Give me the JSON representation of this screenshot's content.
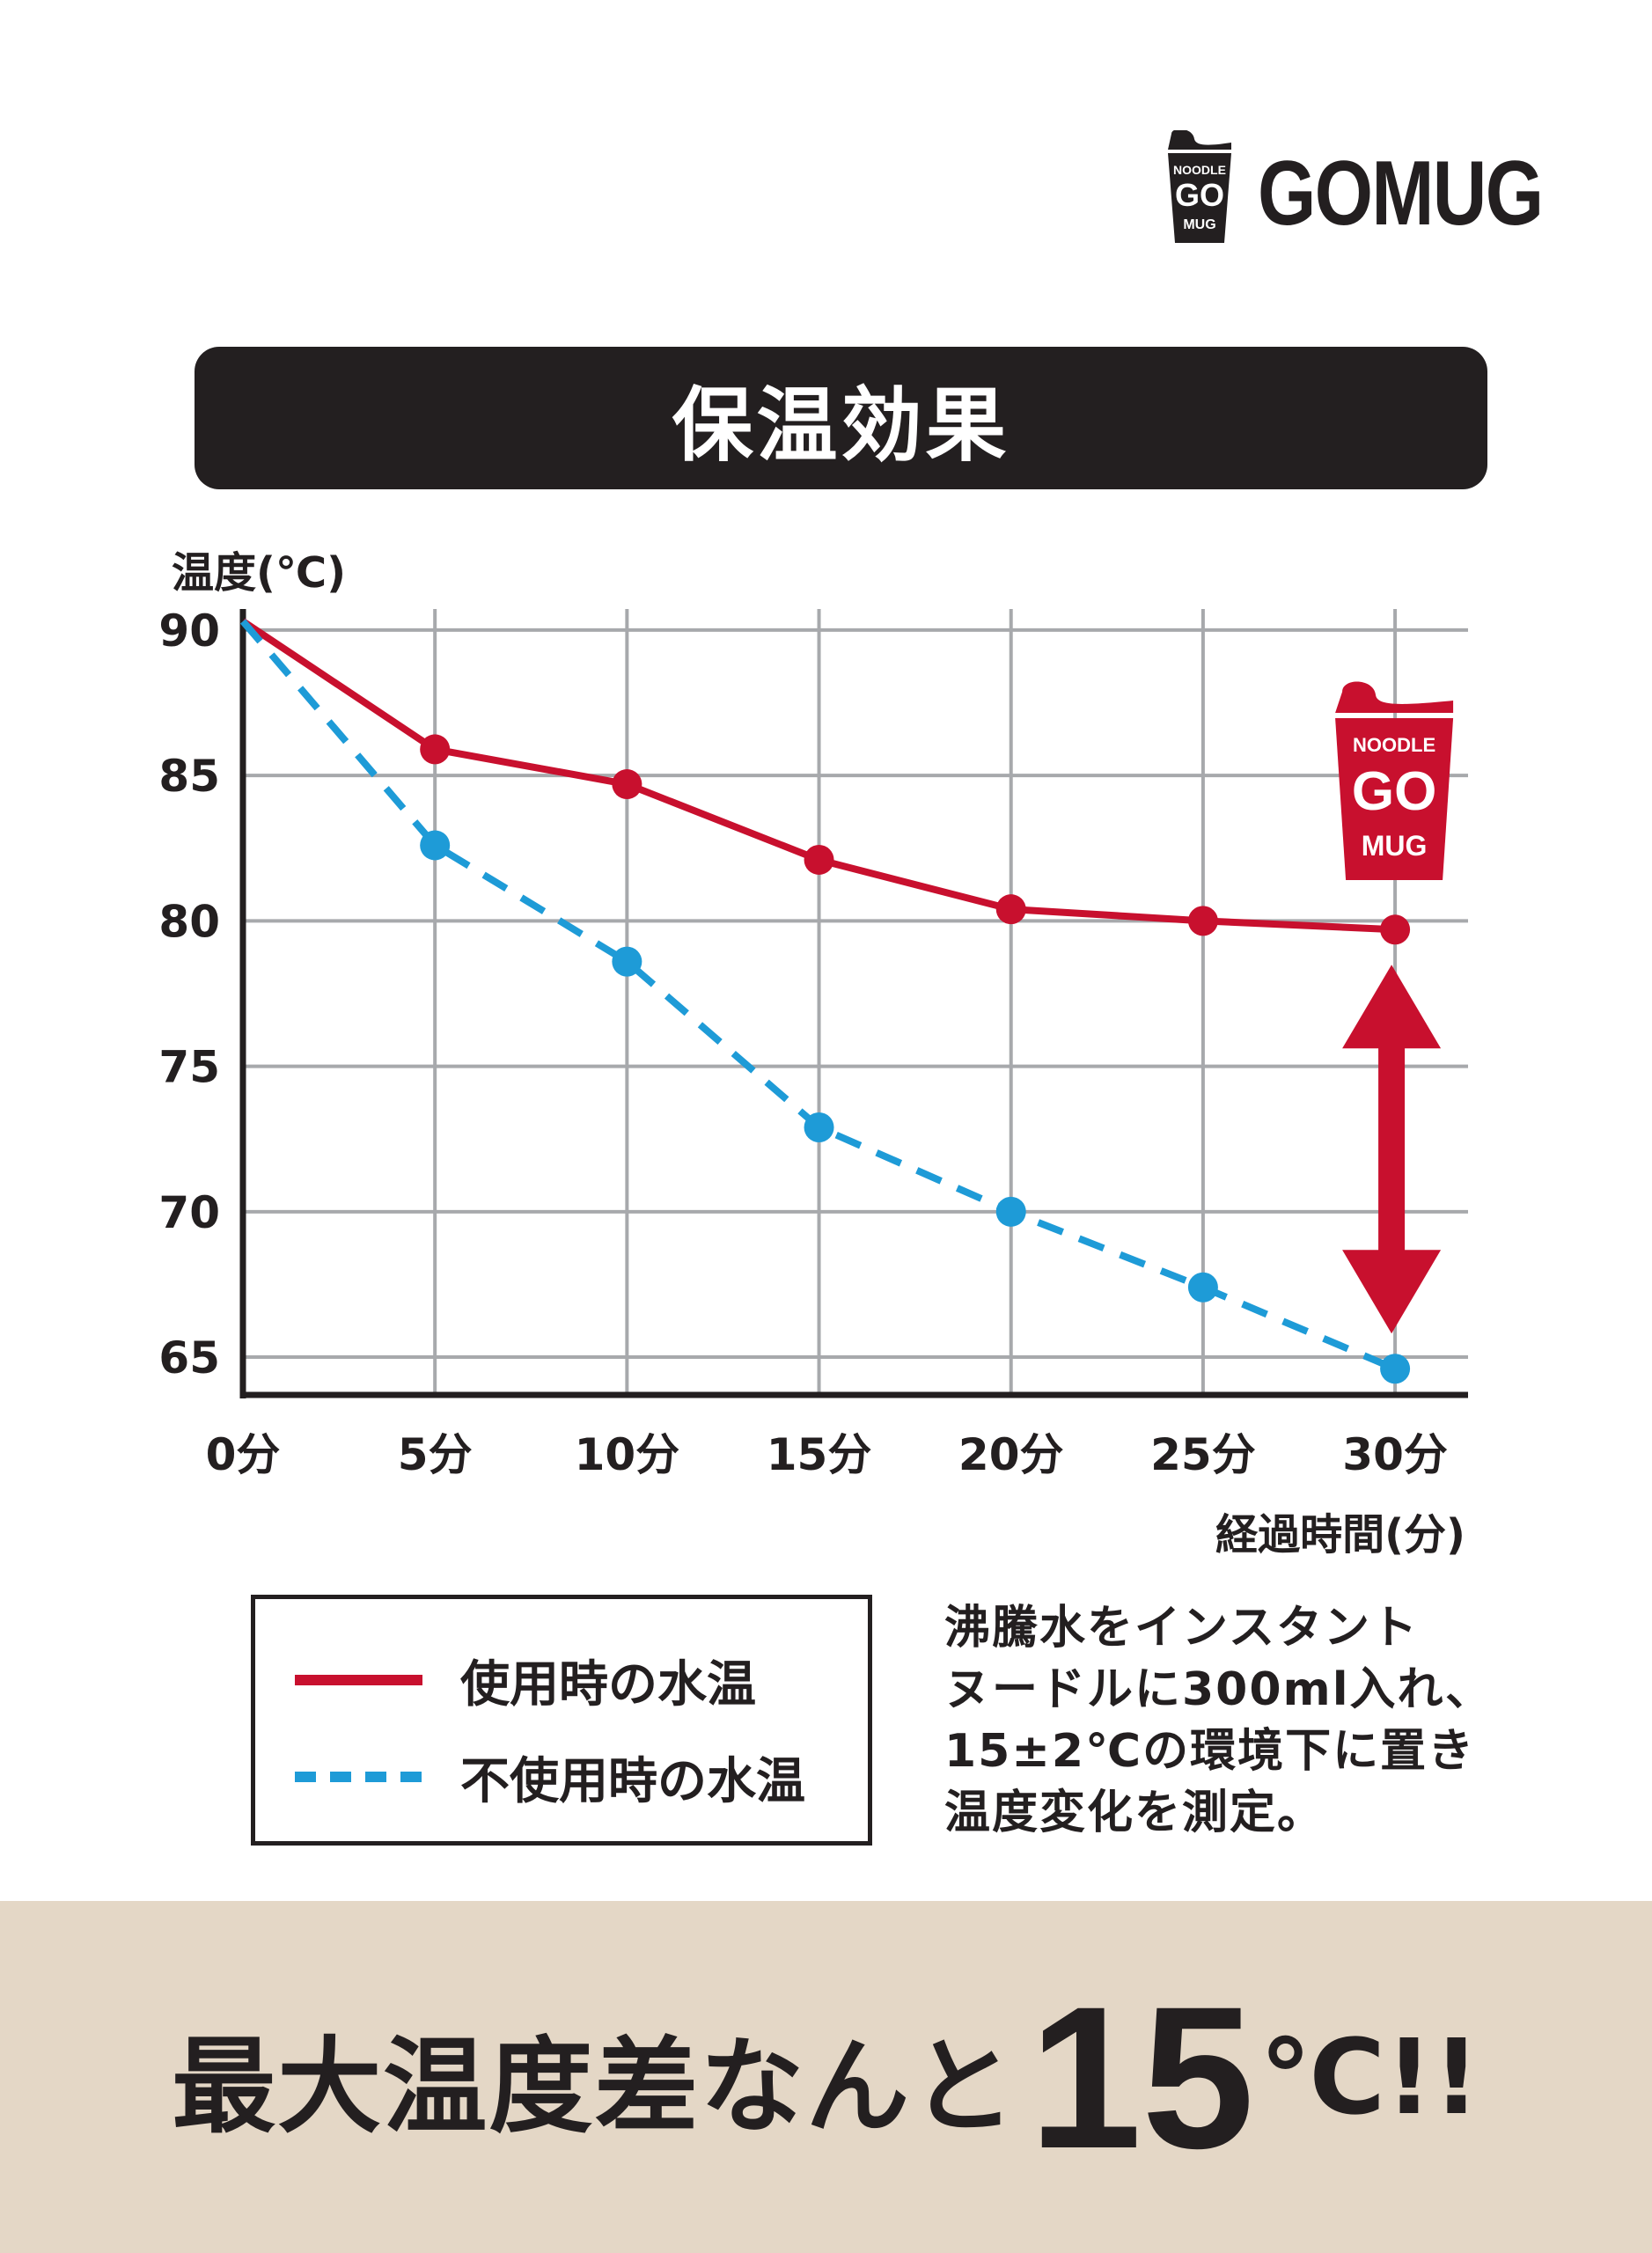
{
  "brand": {
    "cup_lines": [
      "NOODLE",
      "GO",
      "MUG"
    ],
    "wordmark": "GOMUG"
  },
  "title": "保温効果",
  "chart_data": {
    "type": "line",
    "ylabel": "温度(℃)",
    "xlabel": "経過時間(分)",
    "x": [
      0,
      5,
      10,
      15,
      20,
      25,
      30
    ],
    "x_tick_labels": [
      "0分",
      "5分",
      "10分",
      "15分",
      "20分",
      "25分",
      "30分"
    ],
    "y_ticks": [
      90,
      85,
      80,
      75,
      70,
      65
    ],
    "ylim": [
      63.7,
      90.3
    ],
    "xlim": [
      0,
      31.9
    ],
    "grid": true,
    "series": [
      {
        "name": "使用時の水温",
        "values": [
          90.3,
          85.9,
          84.7,
          82.1,
          80.4,
          80.0,
          79.7
        ],
        "color": "#c8102e",
        "style": "solid"
      },
      {
        "name": "不使用時の水温",
        "values": [
          90.3,
          82.6,
          78.6,
          72.9,
          70.0,
          67.4,
          64.6
        ],
        "color": "#1e9bd7",
        "style": "dashed"
      }
    ],
    "annotation": "double-arrow between series at 30分"
  },
  "legend": {
    "items": [
      {
        "label": "使用時の水温",
        "color": "#c8102e",
        "style": "solid"
      },
      {
        "label": "不使用時の水温",
        "color": "#1e9bd7",
        "style": "dashed"
      }
    ]
  },
  "note": {
    "lines": [
      "沸騰水をインスタント",
      "ヌードルに300ml入れ、",
      "15±2℃の環境下に置き",
      "温度変化を測定。"
    ]
  },
  "banner": {
    "text": "最大温度差なんと",
    "number": "15",
    "unit": "℃!!",
    "background": "#e4d7c6"
  }
}
